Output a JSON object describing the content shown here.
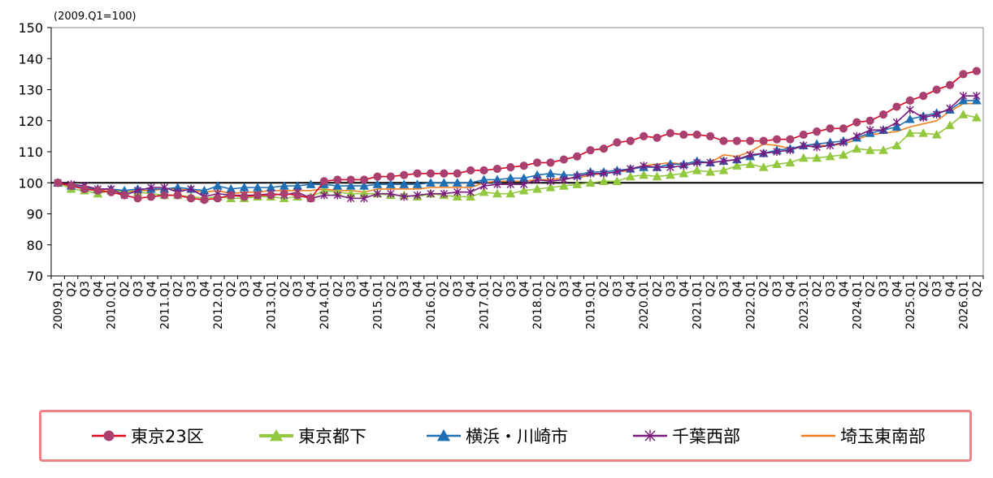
{
  "chart_data": {
    "type": "line",
    "unit_note": "(2009.Q1=100)",
    "ylim": [
      70,
      150
    ],
    "yticks": [
      70,
      80,
      90,
      100,
      110,
      120,
      130,
      140,
      150
    ],
    "reference_line": 100,
    "grid": false,
    "legend_position": "bottom",
    "x": [
      "2009.Q1",
      "Q2",
      "Q3",
      "Q4",
      "2010.Q1",
      "Q2",
      "Q3",
      "Q4",
      "2011.Q1",
      "Q2",
      "Q3",
      "Q4",
      "2012.Q1",
      "Q2",
      "Q3",
      "Q4",
      "2013.Q1",
      "Q2",
      "Q3",
      "Q4",
      "2014.Q1",
      "Q2",
      "Q3",
      "Q4",
      "2015.Q1",
      "Q2",
      "Q3",
      "Q4",
      "2016.Q1",
      "Q2",
      "Q3",
      "Q4",
      "2017.Q1",
      "Q2",
      "Q3",
      "Q4",
      "2018.Q1",
      "Q2",
      "Q3",
      "Q4",
      "2019.Q1",
      "Q2",
      "Q3",
      "Q4",
      "2020.Q1",
      "Q2",
      "Q3",
      "Q4",
      "2021.Q1",
      "Q2",
      "Q3",
      "Q4",
      "2022.Q1",
      "Q2",
      "Q3",
      "Q4",
      "2023.Q1",
      "Q2",
      "Q3",
      "Q4",
      "2024.Q1",
      "Q2",
      "Q3",
      "Q4",
      "2025.Q1",
      "Q2",
      "Q3",
      "Q4",
      "2026.Q1",
      "Q2"
    ],
    "series": [
      {
        "name": "東京23区",
        "color": "#e2001a",
        "marker": "circle",
        "marker_color": "#a94070",
        "values": [
          100,
          99,
          98,
          97.5,
          97,
          96,
          95,
          95.5,
          96,
          96,
          95,
          94.5,
          95,
          96,
          95.5,
          96,
          96,
          96.5,
          96,
          95,
          100.5,
          101,
          101,
          101,
          102,
          102,
          102.5,
          103,
          103,
          103,
          103,
          104,
          104,
          104.5,
          105,
          105.5,
          106.5,
          106.5,
          107.5,
          108.5,
          110.5,
          111,
          113,
          113.5,
          115,
          114.5,
          116,
          115.5,
          115.5,
          115,
          113.5,
          113.5,
          113.5,
          113.5,
          114,
          114,
          115.5,
          116.5,
          117.5,
          117.5,
          119.5,
          120,
          122,
          124.5,
          126.5,
          128,
          130,
          131.5,
          135,
          136
        ]
      },
      {
        "name": "東京都下",
        "color": "#92c83e",
        "marker": "triangle",
        "marker_color": "#92c83e",
        "values": [
          100,
          98,
          97.5,
          96.5,
          97.5,
          97,
          97,
          96.5,
          96,
          96,
          95.5,
          95,
          95.5,
          95,
          95,
          95.5,
          95.5,
          95,
          95.5,
          95.5,
          97.5,
          97,
          96.5,
          96.5,
          96.5,
          96,
          96,
          95.5,
          96.5,
          96,
          95.5,
          95.5,
          97,
          96.5,
          96.5,
          97.5,
          98,
          98.5,
          99,
          99.5,
          100,
          100.5,
          100.5,
          102,
          102.5,
          102,
          102.5,
          103,
          104,
          103.5,
          104,
          105.5,
          106,
          105,
          106,
          106.5,
          108,
          108,
          108.5,
          109,
          111,
          110.5,
          110.5,
          112,
          116,
          116,
          115.5,
          118.5,
          122,
          121
        ]
      },
      {
        "name": "横浜・川崎市",
        "color": "#1f6fb5",
        "marker": "triangle",
        "marker_color": "#1f6fb5",
        "values": [
          100,
          99,
          98.5,
          98,
          98,
          97.5,
          98,
          98,
          98,
          98.5,
          98,
          97.5,
          99,
          98,
          98.5,
          98.5,
          98.5,
          99,
          99,
          99.5,
          99.5,
          99,
          99,
          99,
          99.5,
          99.5,
          99.5,
          99.5,
          100,
          100,
          100,
          100,
          101,
          101,
          101.5,
          101.5,
          102.5,
          103,
          102.5,
          102.5,
          103.5,
          103.5,
          104,
          104.5,
          105,
          105,
          106,
          106,
          107,
          106.5,
          107,
          107.5,
          108.5,
          109.5,
          110.5,
          111,
          112,
          112.5,
          113,
          113.5,
          114.5,
          116,
          117,
          118,
          120.5,
          121.5,
          122.5,
          123.5,
          126.5,
          126.5
        ]
      },
      {
        "name": "千葉西部",
        "color": "#7a1a7e",
        "marker": "asterisk",
        "marker_color": "#7a1a7e",
        "values": [
          100,
          99.5,
          99,
          98,
          98,
          96,
          97.5,
          98.5,
          98.5,
          97,
          98,
          95.5,
          96.5,
          96,
          96,
          96,
          96.5,
          96,
          97,
          95,
          96,
          96,
          95,
          95,
          96.5,
          96.5,
          95.5,
          96,
          96.5,
          96.5,
          97,
          97,
          99,
          99.5,
          99.5,
          99.5,
          101,
          100.5,
          101,
          102,
          103,
          103,
          103.5,
          104.5,
          105.5,
          105,
          105,
          105.5,
          106.5,
          106.5,
          107,
          107.5,
          109,
          109.5,
          110,
          110.5,
          112,
          111.5,
          112,
          113,
          115,
          117,
          117,
          119.5,
          123.5,
          121,
          122,
          124,
          128,
          128
        ]
      },
      {
        "name": "埼玉東南部",
        "color": "#f07d1e",
        "marker": "none",
        "marker_color": "#f07d1e",
        "values": [
          100,
          99,
          98.5,
          97.5,
          98,
          97,
          97.5,
          97.5,
          98,
          98,
          97.5,
          97,
          97.5,
          96.5,
          97,
          97,
          97.5,
          97.5,
          97.5,
          97.5,
          98,
          97.5,
          97.5,
          97,
          98,
          98,
          98,
          98,
          98.5,
          98.5,
          98.5,
          98.5,
          100,
          100.5,
          100.5,
          100.5,
          101,
          101,
          101.5,
          101.5,
          102.5,
          103,
          103.5,
          104,
          105.5,
          106,
          106.5,
          106,
          107,
          106.5,
          109,
          108.5,
          110,
          112.5,
          112,
          111,
          111.5,
          112,
          112,
          112.5,
          114,
          115.5,
          116,
          116.5,
          118,
          119,
          120,
          123,
          125.5,
          125.5
        ]
      }
    ]
  }
}
